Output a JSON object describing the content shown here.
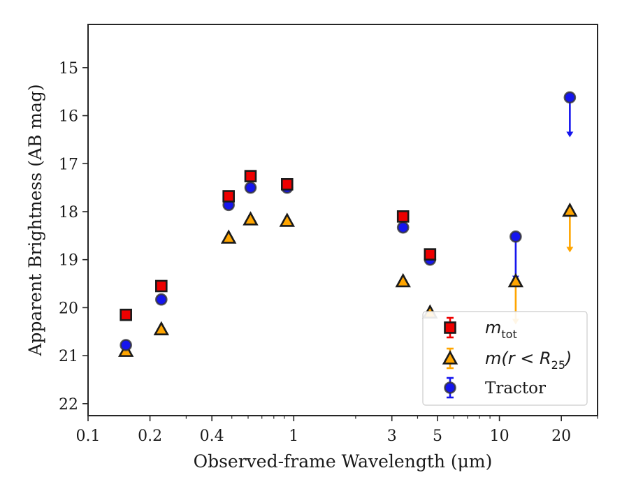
{
  "chart_data": {
    "type": "scatter",
    "title": "",
    "xlabel": "Observed-frame Wavelength (μm)",
    "ylabel": "Apparent Brightness (AB mag)",
    "xscale": "log",
    "xlim": [
      0.1,
      30
    ],
    "ylim": [
      22.25,
      14.1
    ],
    "y_inverted": true,
    "x_ticks": [
      0.1,
      0.2,
      0.4,
      1,
      3,
      5,
      10,
      20
    ],
    "x_tick_labels": [
      "0.1",
      "0.2",
      "0.4",
      "1",
      "3",
      "5",
      "10",
      "20"
    ],
    "y_ticks": [
      15,
      16,
      17,
      18,
      19,
      20,
      21,
      22
    ],
    "y_tick_labels": [
      "15",
      "16",
      "17",
      "18",
      "19",
      "20",
      "21",
      "22"
    ],
    "grid": false,
    "legend_position": "bottom-right",
    "series": [
      {
        "key": "mtot",
        "marker": "square",
        "color": "#ee0000",
        "error_color": "#ee0000",
        "x": [
          0.1528,
          0.2271,
          0.4826,
          0.6166,
          0.9284,
          3.4,
          4.6
        ],
        "y": [
          20.15,
          19.55,
          17.68,
          17.26,
          17.43,
          18.1,
          18.89
        ],
        "upper_limits": []
      },
      {
        "key": "mr25",
        "marker": "triangle",
        "color": "#ffa500",
        "error_color": "#ffa500",
        "x": [
          0.1528,
          0.2271,
          0.4826,
          0.6166,
          0.9284,
          3.4,
          4.6
        ],
        "y": [
          20.9,
          20.45,
          18.54,
          18.16,
          18.19,
          19.45,
          20.1
        ],
        "upper_limits": [
          {
            "x": 12.0,
            "y": 19.45,
            "limit_to": 20.35
          },
          {
            "x": 22.0,
            "y": 17.98,
            "limit_to": 18.85
          }
        ]
      },
      {
        "key": "tractor",
        "name": "Tractor",
        "marker": "circle",
        "color": "#1515ee",
        "error_color": "#1515ee",
        "x": [
          0.1528,
          0.2271,
          0.4826,
          0.6166,
          0.9284,
          3.4,
          4.6
        ],
        "y": [
          20.78,
          19.83,
          17.86,
          17.5,
          17.5,
          18.33,
          19.0
        ],
        "upper_limits": [
          {
            "x": 12.0,
            "y": 18.52,
            "limit_to": 19.45
          },
          {
            "x": 22.0,
            "y": 15.62,
            "limit_to": 16.45
          }
        ]
      }
    ],
    "legend": [
      {
        "series": "mtot",
        "label_main": "m",
        "label_sub": "tot"
      },
      {
        "series": "mr25",
        "label_main": "m(r < R",
        "label_sub": "25",
        "label_end": ")"
      },
      {
        "series": "tractor",
        "label": "Tractor"
      }
    ]
  }
}
